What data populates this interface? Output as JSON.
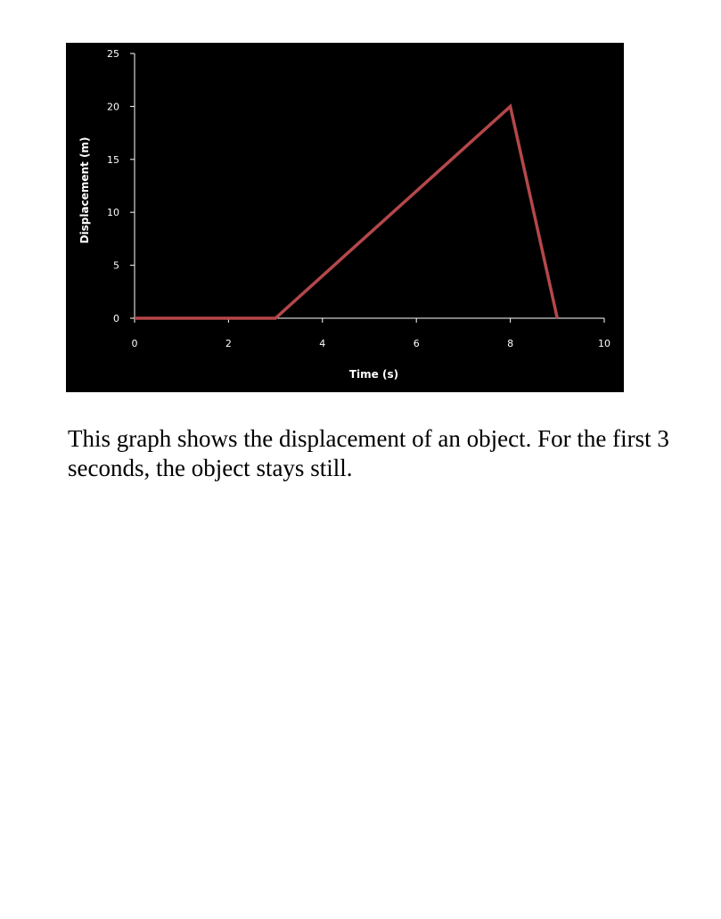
{
  "chart_data": {
    "type": "line",
    "title": "",
    "xlabel": "Time (s)",
    "ylabel": "Displacement (m)",
    "xlim": [
      0,
      10
    ],
    "ylim": [
      0,
      25
    ],
    "x_ticks": [
      0,
      2,
      4,
      6,
      8,
      10
    ],
    "y_ticks": [
      0,
      5,
      10,
      15,
      20,
      25
    ],
    "grid": false,
    "legend": "none",
    "series": [
      {
        "x": [
          0,
          3,
          8,
          9
        ],
        "y": [
          0,
          0,
          20,
          0
        ],
        "color": "#b5474a"
      }
    ],
    "background": "#000000",
    "axis_color": "#ffffff"
  },
  "caption": "This graph shows the displacement of an object. For the first 3 seconds, the object stays still."
}
